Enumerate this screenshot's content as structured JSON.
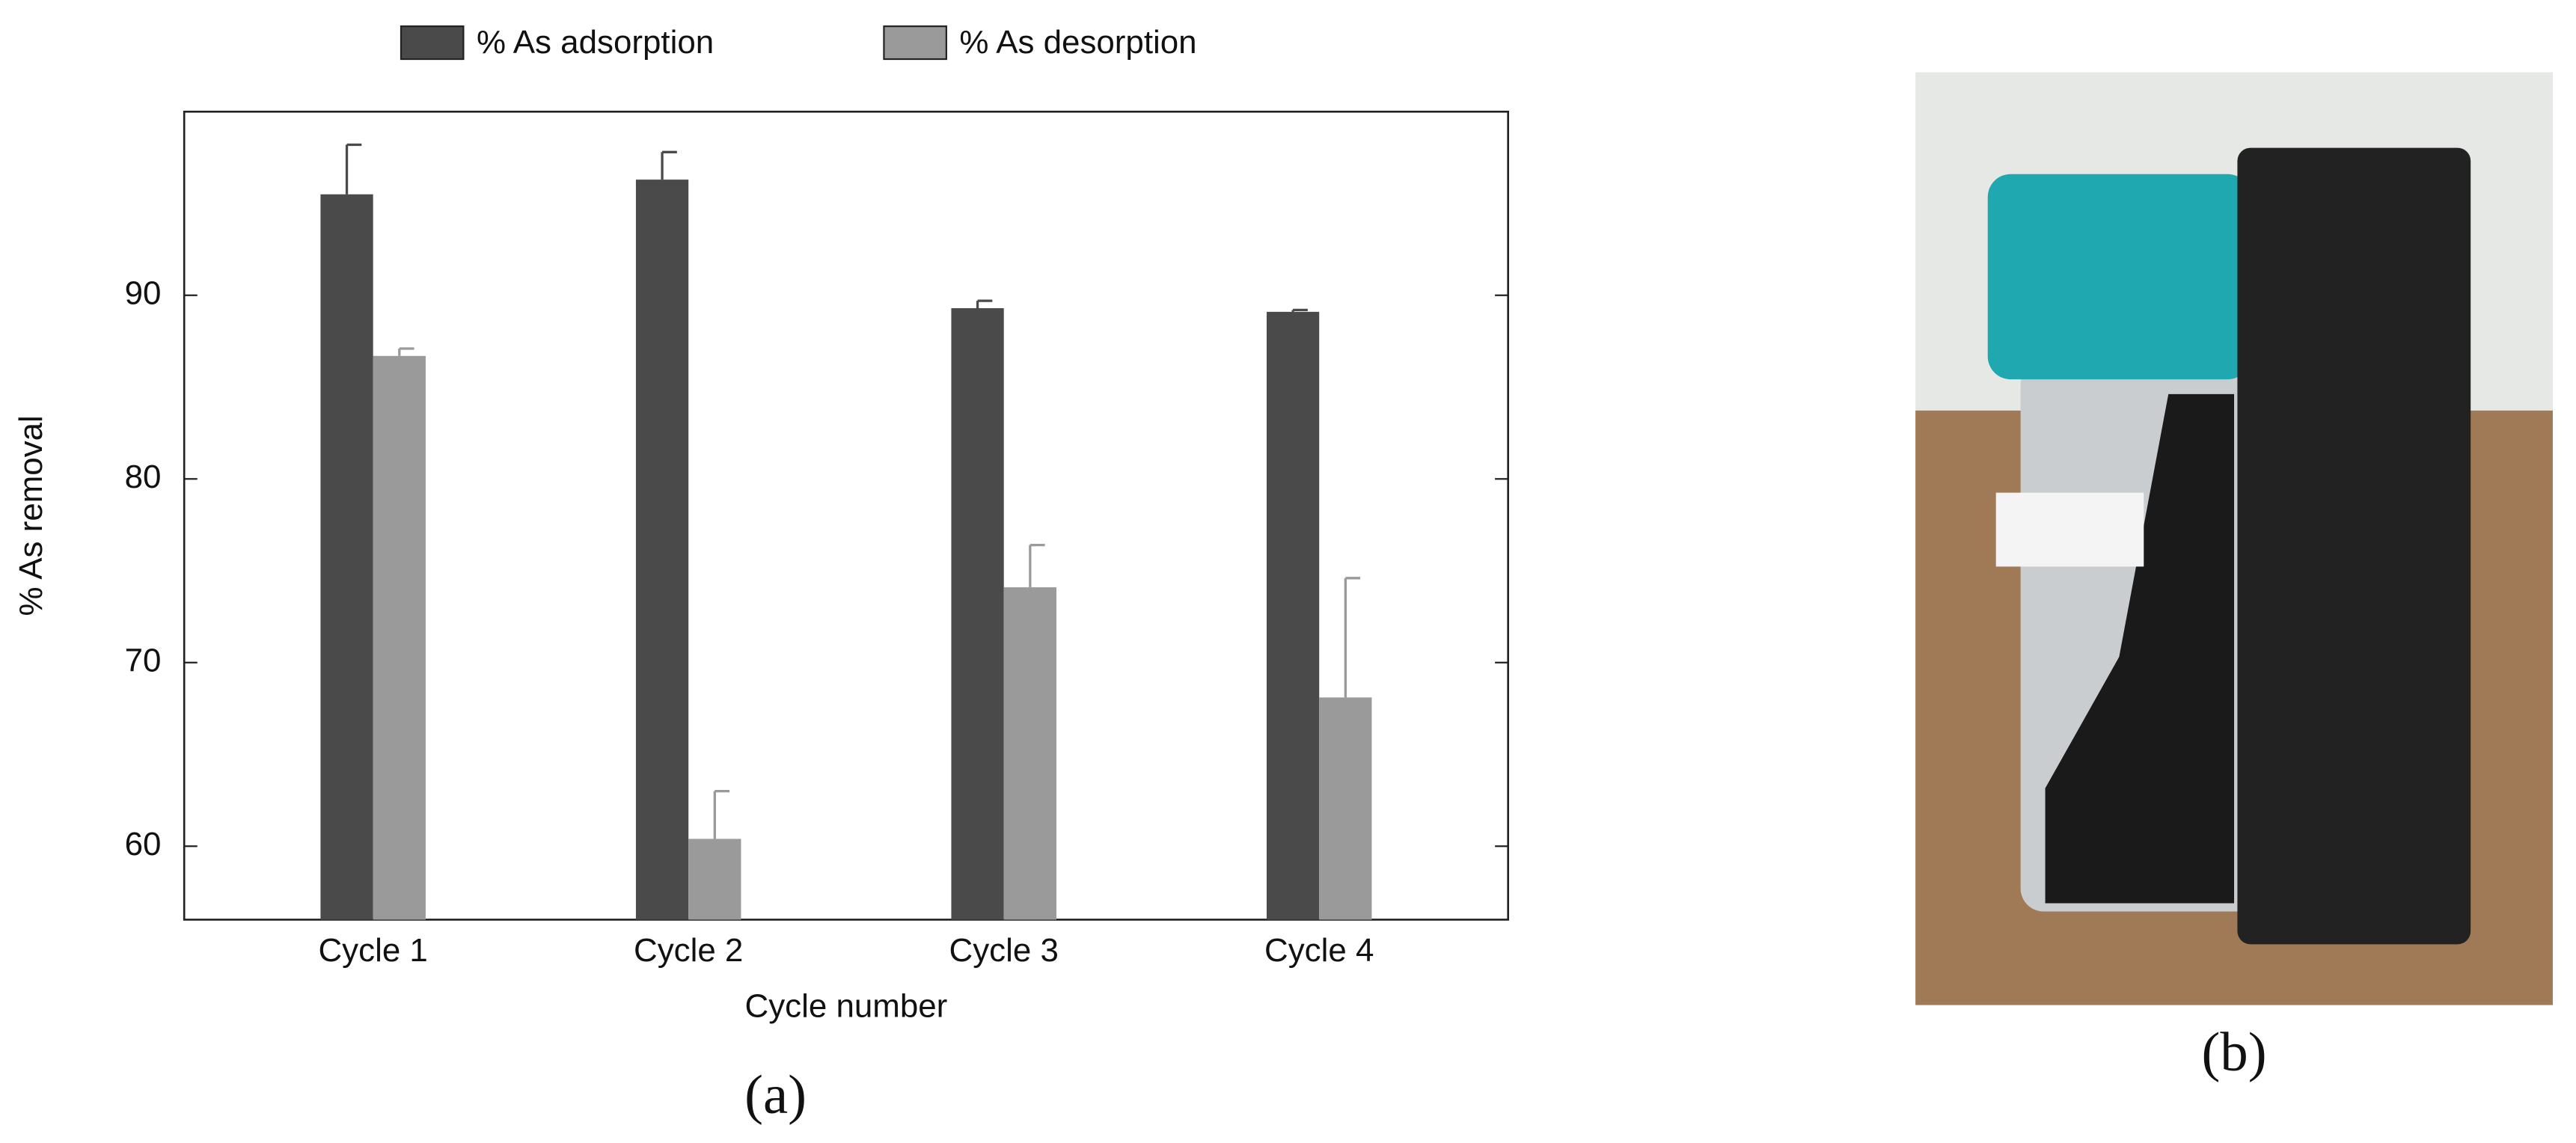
{
  "chart_data": {
    "type": "bar",
    "categories": [
      "Cycle 1",
      "Cycle 2",
      "Cycle 3",
      "Cycle 4"
    ],
    "series": [
      {
        "name": "% As adsorption",
        "color": "#4a4a4a",
        "values": [
          95.5,
          96.3,
          89.3,
          89.1
        ],
        "errors": [
          2.7,
          1.5,
          0.4,
          0.1
        ]
      },
      {
        "name": "% As desorption",
        "color": "#9a9a9a",
        "values": [
          86.7,
          60.4,
          74.1,
          68.1
        ],
        "errors": [
          0.4,
          2.6,
          2.3,
          6.5
        ]
      }
    ],
    "xlabel": "Cycle number",
    "ylabel": "% As removal",
    "ylim": [
      56,
      100
    ],
    "yticks": [
      60,
      70,
      80,
      90
    ],
    "panel_labels": [
      "(a)",
      "(b)"
    ]
  }
}
